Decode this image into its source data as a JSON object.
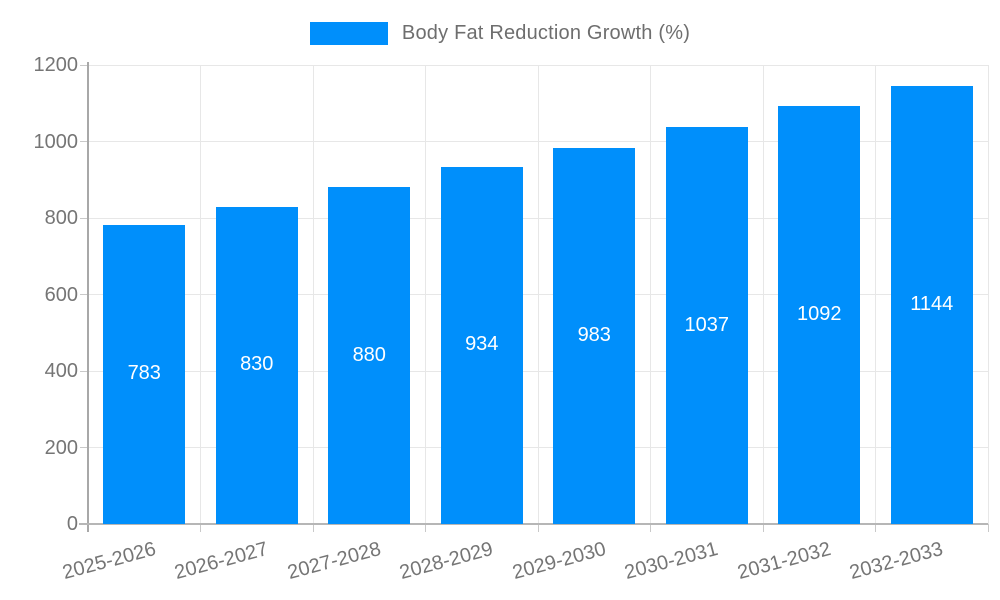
{
  "legend": {
    "label": "Body Fat Reduction Growth (%)",
    "swatch_color": "#008FFB"
  },
  "chart_data": {
    "type": "bar",
    "title": "Body Fat Reduction Growth (%)",
    "categories": [
      "2025-2026",
      "2026-2027",
      "2027-2028",
      "2028-2029",
      "2029-2030",
      "2030-2031",
      "2031-2032",
      "2032-2033"
    ],
    "values": [
      783,
      830,
      880,
      934,
      983,
      1037,
      1092,
      1144
    ],
    "xlabel": "",
    "ylabel": "",
    "ylim": [
      0,
      1200
    ],
    "yticks": [
      0,
      200,
      400,
      600,
      800,
      1000,
      1200
    ],
    "grid": true,
    "legend_position": "top",
    "colors": {
      "bar": "#008FFB",
      "value_label": "#ffffff",
      "gridline": "#e7e7e7",
      "axis_label": "#757575",
      "legend_text": "#6e6e6e"
    }
  }
}
